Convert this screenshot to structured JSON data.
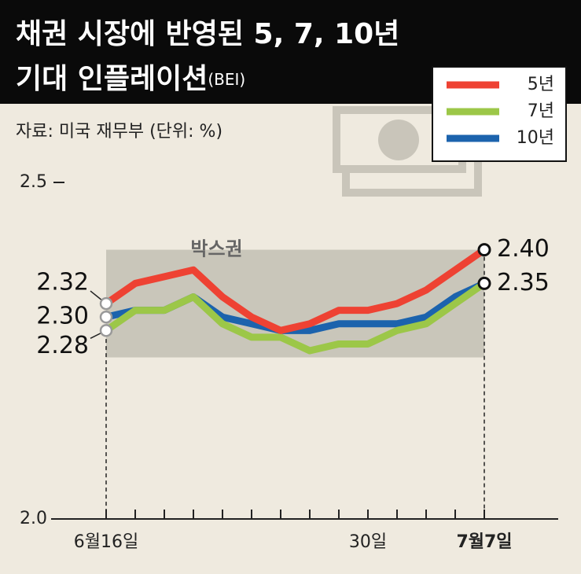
{
  "chart_data": {
    "type": "line",
    "title_lines": [
      "채권 시장에 반영된 5, 7, 10년",
      "기대 인플레이션"
    ],
    "title_suffix": "(BEI)",
    "source": "자료: 미국 재무부  (단위: %)",
    "categories": [
      "6월16일",
      null,
      null,
      null,
      null,
      null,
      null,
      null,
      null,
      "30일",
      null,
      null,
      null,
      "7월7일"
    ],
    "series": [
      {
        "name": "5년",
        "color": "#ee4233",
        "values": [
          2.32,
          2.35,
          2.36,
          2.37,
          2.33,
          2.3,
          2.28,
          2.29,
          2.31,
          2.31,
          2.32,
          2.34,
          2.37,
          2.4
        ],
        "value_labels": [
          "2.32",
          null,
          null,
          null,
          null,
          null,
          null,
          null,
          null,
          null,
          null,
          null,
          null,
          "2.40"
        ]
      },
      {
        "name": "7년",
        "color": "#9cc748",
        "values": [
          2.28,
          2.31,
          2.31,
          2.33,
          2.29,
          2.27,
          2.27,
          2.25,
          2.26,
          2.26,
          2.28,
          2.29,
          2.32,
          2.35
        ],
        "value_labels": [
          "2.28",
          null,
          null,
          null,
          null,
          null,
          null,
          null,
          null,
          null,
          null,
          null,
          null,
          null
        ]
      },
      {
        "name": "10년",
        "color": "#1c63ad",
        "values": [
          2.3,
          2.31,
          2.31,
          2.33,
          2.3,
          2.29,
          2.28,
          2.28,
          2.29,
          2.29,
          2.29,
          2.3,
          2.33,
          2.35
        ],
        "value_labels": [
          "2.30",
          null,
          null,
          null,
          null,
          null,
          null,
          null,
          null,
          null,
          null,
          null,
          null,
          "2.35"
        ]
      }
    ],
    "band": {
      "label": "박스권",
      "range": [
        2.24,
        2.4
      ]
    },
    "ylim": [
      2.0,
      2.5
    ],
    "yticks": [
      {
        "value": 2,
        "label": "2.0"
      },
      2.5
    ]
  }
}
